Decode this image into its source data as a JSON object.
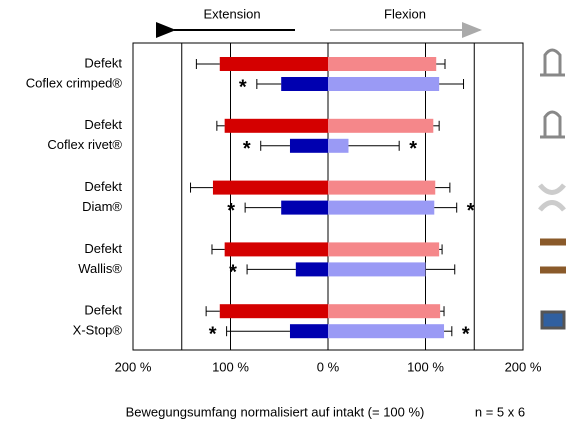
{
  "chart_data": {
    "type": "bar",
    "categories": [
      "Defekt",
      "Coflex crimped®",
      "Defekt",
      "Coflex rivet®",
      "Defekt",
      "Diam®",
      "Defekt",
      "Wallis®",
      "Defekt",
      "X-Stop®"
    ],
    "series": [
      {
        "name": "Extension",
        "colors": [
          "#d40000",
          "#0000b0",
          "#d40000",
          "#0000b0",
          "#d40000",
          "#0000b0",
          "#d40000",
          "#0000b0",
          "#d40000",
          "#0000b0"
        ],
        "values": [
          -111,
          -48,
          -106,
          -39,
          -118,
          -48,
          -106,
          -33,
          -111,
          -39
        ],
        "errors": [
          24,
          25,
          8,
          30,
          23,
          37,
          13,
          50,
          14,
          65
        ],
        "significance": [
          null,
          "*",
          null,
          "*",
          null,
          "*",
          null,
          "*",
          null,
          "*"
        ]
      },
      {
        "name": "Flexion",
        "colors": [
          "#f5878a",
          "#9a9af5",
          "#f5878a",
          "#9a9af5",
          "#f5878a",
          "#9a9af5",
          "#f5878a",
          "#9a9af5",
          "#f5878a",
          "#9a9af5"
        ],
        "values": [
          111,
          114,
          108,
          21,
          110,
          109,
          114,
          100,
          115,
          119
        ],
        "errors": [
          9,
          25,
          6,
          52,
          15,
          23,
          3,
          30,
          4,
          8
        ],
        "significance": [
          null,
          null,
          null,
          "*",
          null,
          "*",
          null,
          null,
          null,
          "*"
        ]
      }
    ],
    "xlim": [
      -200,
      200
    ],
    "xticks": [
      {
        "value": -200,
        "label": "200 %"
      },
      {
        "value": -100,
        "label": "100 %"
      },
      {
        "value": 0,
        "label": "0 %"
      },
      {
        "value": 100,
        "label": "100 %"
      },
      {
        "value": 200,
        "label": "200 %"
      }
    ],
    "xgrid": [
      -150,
      -100,
      0,
      100,
      150
    ],
    "x_label": "Bewegungsumfang normalisiert auf intakt (= 100 %)",
    "note": "n = 5 x 6"
  }
}
